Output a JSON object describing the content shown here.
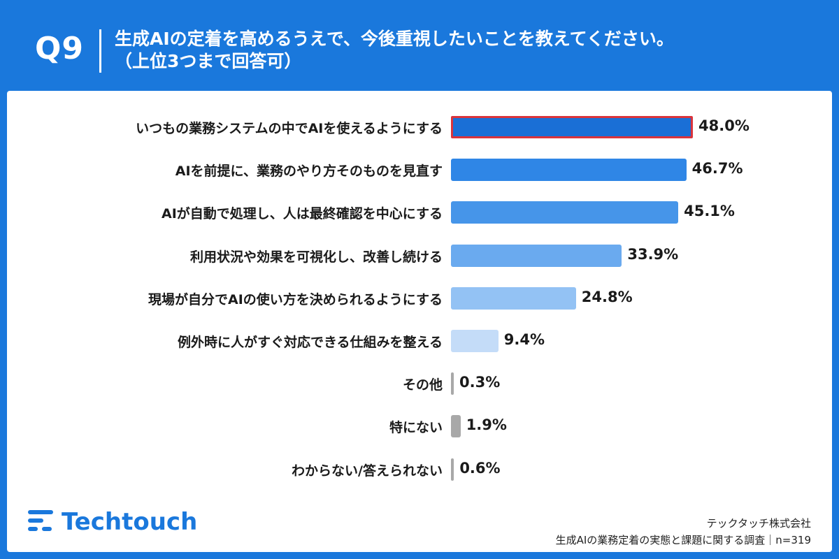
{
  "header": {
    "qnum": "Q9",
    "title_line1": "生成AIの定着を高めるうえで、今後重視したいことを教えてください。",
    "title_line2": "（上位3つまで回答可）"
  },
  "chart_data": {
    "type": "bar",
    "orientation": "horizontal",
    "categories": [
      "いつもの業務システムの中でAIを使えるようにする",
      "AIを前提に、業務のやり方そのものを見直す",
      "AIが自動で処理し、人は最終確認を中心にする",
      "利用状況や効果を可視化し、改善し続ける",
      "現場が自分でAIの使い方を決められるようにする",
      "例外時に人がすぐ対応できる仕組みを整える",
      "その他",
      "特にない",
      "わからない/答えられない"
    ],
    "values": [
      48.0,
      46.7,
      45.1,
      33.9,
      24.8,
      9.4,
      0.3,
      1.9,
      0.6
    ],
    "value_labels": [
      "48.0%",
      "46.7%",
      "45.1%",
      "33.9%",
      "24.8%",
      "9.4%",
      "0.3%",
      "1.9%",
      "0.6%"
    ],
    "bar_colors": [
      "#1a6fd6",
      "#2f86e6",
      "#4695e9",
      "#6aaaef",
      "#93c2f4",
      "#c4dcf8",
      "#a8a8a8",
      "#a8a8a8",
      "#a8a8a8"
    ],
    "highlight_index": 0,
    "highlight_color": "#d9343c",
    "xlim": [
      0,
      48.0
    ],
    "grid": false,
    "legend": false
  },
  "brand": {
    "logo_text": "Techtouch",
    "logo_icon": "techtouch-logo-icon",
    "color": "#1a78dc"
  },
  "footer": {
    "company": "テックタッチ株式会社",
    "survey": "生成AIの業務定着の実態と課題に関する調査｜n=319"
  }
}
